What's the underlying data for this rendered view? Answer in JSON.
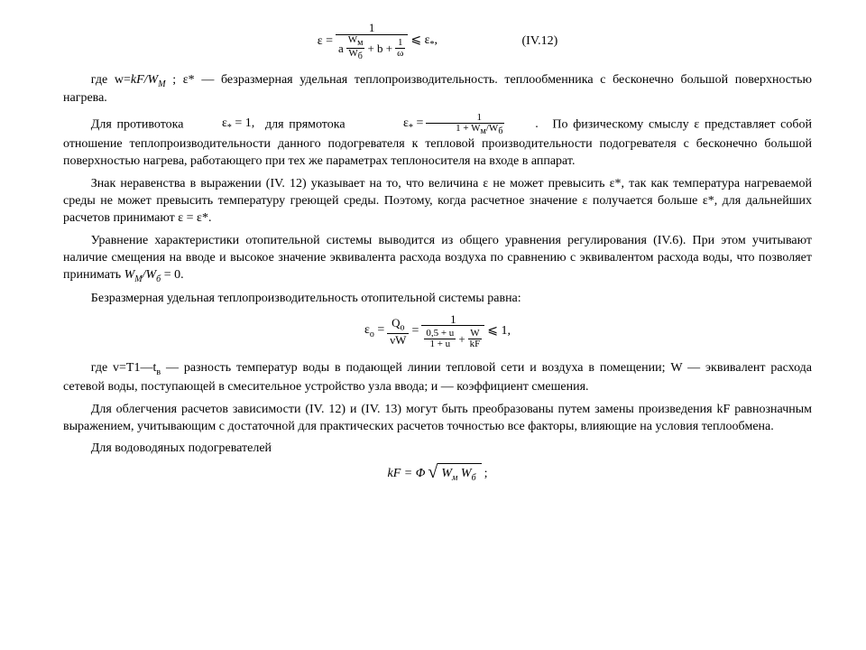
{
  "formula1": {
    "lhs": "ε =",
    "num": "1",
    "den_a": "a",
    "den_frac_num": "W<sub>м</sub>",
    "den_frac_den": "W<sub>б</sub>",
    "den_b": "+ b +",
    "den_c_num": "1",
    "den_c_den": "ω",
    "rhs": "⩽ ε<sub>*</sub>,",
    "eqnum": "(IV.12)"
  },
  "p1": "где w=<span class=\"italic\">kF/W<sub>M</sub></span> ; ε* — безразмерная удельная теплопроизводительность. теплообменника с бесконечно большой поверхностью нагрева.",
  "p2a": "Для противотока",
  "p2_eq1": "ε<sub>*</sub> = 1,",
  "p2b": "для прямотока",
  "p2_eq2_lhs": "ε<sub>*</sub> =",
  "p2_eq2_num": "1",
  "p2_eq2_den": "1 + W<sub>м</sub>/W<sub>б</sub>",
  "p2_eq2_tail": ".",
  "p2c": "По физическому смыслу ε представляет собой отношение теплопроизводительности данного подогревателя к тепловой производительности подогревателя с бесконечно большой поверхностью нагрева, работающего при тех же параметрах теплоносителя на входе в аппарат.",
  "p3": "Знак неравенства в выражении (IV. 12) указывает на то, что величина ε не может превысить ε*, так как температура нагреваемой среды не может превысить температуру греющей среды. Поэтому, когда расчетное значение ε получается больше ε*, для дальнейших расчетов принимают ε = ε*.",
  "p4": "Уравнение характеристики отопительной системы выводится из общего уравнения регулирования (IV.6). При этом учитывают наличие смещения на вводе и высокое значение эквивалента расхода воздуха по сравнению с эквивалентом расхода воды, что позволяет принимать <span class=\"italic\">W<sub>M</sub>/W<sub>б</sub></span> = 0.",
  "p5": "Безразмерная  удельная  теплопроизводительность   отопительной системы равна:",
  "formula2": {
    "lhs": "ε<sub>о</sub> =",
    "f1_num": "Q<sub>о</sub>",
    "f1_den": "νW",
    "eq": "=",
    "f2_num": "1",
    "f2_den_a_num": "0,5 + u",
    "f2_den_a_den": "1 + u",
    "f2_den_plus": "+",
    "f2_den_b_num": "W",
    "f2_den_b_den": "kF",
    "rhs": "⩽ 1,"
  },
  "p6": "где v=T1—t<sub>в</sub> — разность температур воды в подающей линии тепловой сети и воздуха в помещении; W — эквивалент расхода сетевой воды, поступающей в смесительное устройство узла ввода; и — коэффициент смешения.",
  "p7": "Для облегчения расчетов зависимости (IV. 12) и (IV. 13) могут быть преобразованы путем замены произведения kF равнозначным выражением, учитывающим с достаточной для практических расчетов точностью все факторы, влияющие на условия   теплообмена.",
  "p8": "Для водоводяных подогревателей",
  "formula3": {
    "lhs": "kF = Φ",
    "sqrt": "W<sub>м</sub> W<sub>б</sub>",
    "tail": ";"
  }
}
